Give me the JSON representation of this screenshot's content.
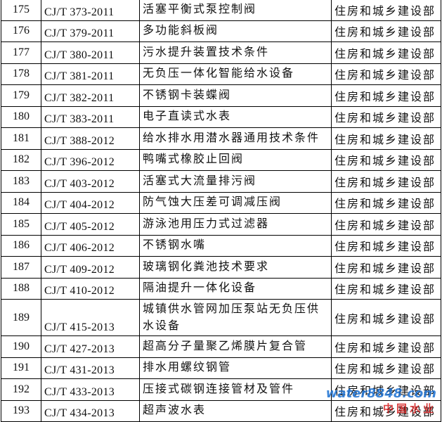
{
  "table": {
    "rows": [
      [
        "175",
        "CJ/T 373-2011",
        "活塞平衡式泵控制阀",
        "住房和城乡建设部"
      ],
      [
        "176",
        "CJ/T 379-2011",
        "多功能斜板阀",
        "住房和城乡建设部"
      ],
      [
        "177",
        "CJ/T 380-2011",
        "污水提升装置技术条件",
        "住房和城乡建设部"
      ],
      [
        "178",
        "CJ/T 381-2011",
        "无负压一体化智能给水设备",
        "住房和城乡建设部"
      ],
      [
        "179",
        "CJ/T 382-2011",
        "不锈钢卡装蝶阀",
        "住房和城乡建设部"
      ],
      [
        "180",
        "CJ/T 383-2011",
        "电子直读式水表",
        "住房和城乡建设部"
      ],
      [
        "181",
        "CJ/T 388-2012",
        "给水排水用潜水器通用技术条件",
        "住房和城乡建设部"
      ],
      [
        "182",
        "CJ/T 396-2012",
        "鸭嘴式橡胶止回阀",
        "住房和城乡建设部"
      ],
      [
        "183",
        "CJ/T 403-2012",
        "活塞式大流量排污阀",
        "住房和城乡建设部"
      ],
      [
        "184",
        "CJ/T 404-2012",
        "防气蚀大压差可调减压阀",
        "住房和城乡建设部"
      ],
      [
        "185",
        "CJ/T 405-2012",
        "游泳池用压力式过滤器",
        "住房和城乡建设部"
      ],
      [
        "186",
        "CJ/T 406-2012",
        "不锈钢水嘴",
        "住房和城乡建设部"
      ],
      [
        "187",
        "CJ/T 409-2012",
        "玻璃钢化粪池技术要求",
        "住房和城乡建设部"
      ],
      [
        "188",
        "CJ/T 410-2012",
        "隔油提升一体化设备",
        "住房和城乡建设部"
      ],
      [
        "189",
        "CJ/T 415-2013",
        "城镇供水管网加压泵站无负压供水设备",
        "住房和城乡建设部"
      ],
      [
        "190",
        "CJ/T 427-2013",
        "超高分子量聚乙烯膜片复合管",
        "住房和城乡建设部"
      ],
      [
        "191",
        "CJ/T 431-2013",
        "排水用螺纹钢管",
        "住房和城乡建设部"
      ],
      [
        "192",
        "CJ/T 433-2013",
        "压接式碳钢连接管材及管件",
        "住房和城乡建设部"
      ],
      [
        "193",
        "CJ/T 434-2013",
        "超声波水表",
        "住房和城乡建设部"
      ]
    ]
  },
  "watermark": {
    "site": "water8848.com",
    "brand": "中国水业"
  }
}
